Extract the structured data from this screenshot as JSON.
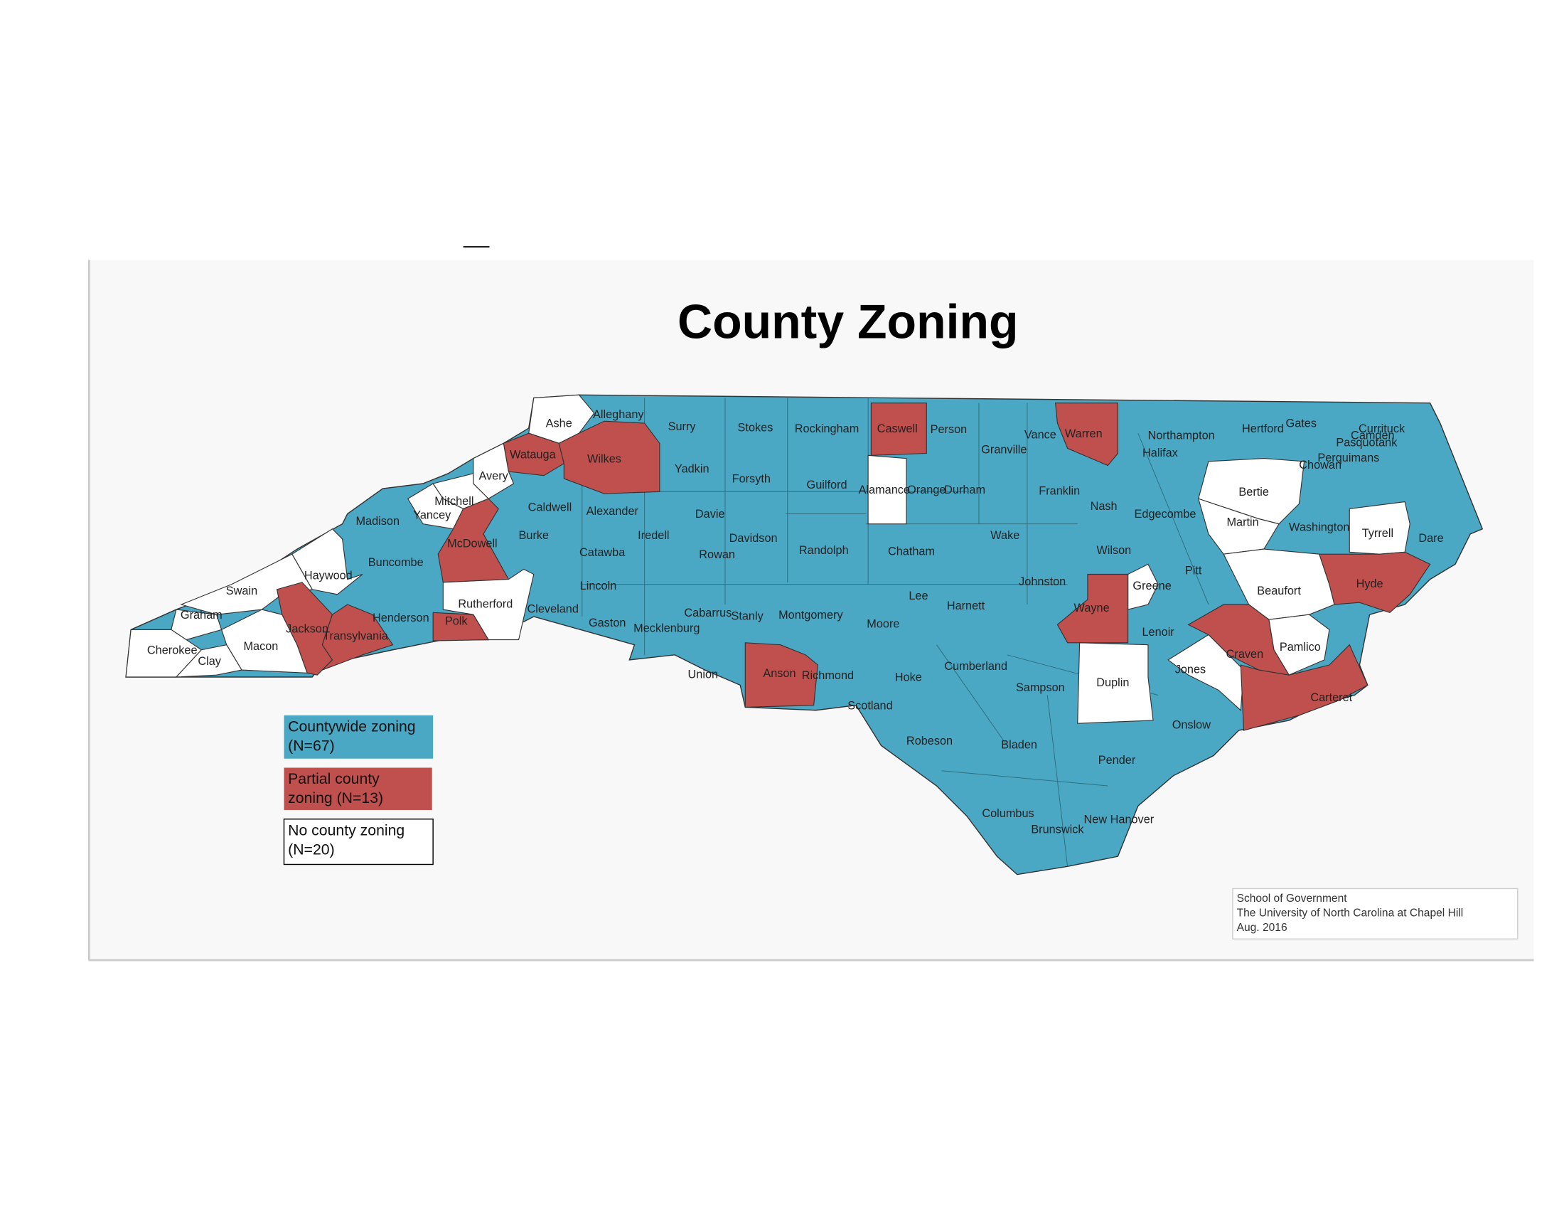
{
  "title": "County Zoning",
  "legend": [
    {
      "lines": [
        "Countywide zoning",
        "(N=67)"
      ],
      "color": "#4ba8c4"
    },
    {
      "lines": [
        "Partial county",
        "zoning (N=13)"
      ],
      "color": "#c0504d"
    },
    {
      "lines": [
        "No county zoning",
        "(N=20)"
      ],
      "color": "#ffffff"
    }
  ],
  "credit": [
    "School of Government",
    "The University of North Carolina at Chapel Hill",
    "Aug. 2016"
  ],
  "counties": [
    {
      "name": "Alleghany",
      "zoning": 0
    },
    {
      "name": "Ashe",
      "zoning": 2
    },
    {
      "name": "Surry",
      "zoning": 0
    },
    {
      "name": "Stokes",
      "zoning": 0
    },
    {
      "name": "Rockingham",
      "zoning": 0
    },
    {
      "name": "Caswell",
      "zoning": 1
    },
    {
      "name": "Person",
      "zoning": 0
    },
    {
      "name": "Granville",
      "zoning": 0
    },
    {
      "name": "Vance",
      "zoning": 0
    },
    {
      "name": "Warren",
      "zoning": 1
    },
    {
      "name": "Northampton",
      "zoning": 0
    },
    {
      "name": "Hertford",
      "zoning": 0
    },
    {
      "name": "Gates",
      "zoning": 0
    },
    {
      "name": "Currituck",
      "zoning": 0
    },
    {
      "name": "Camden",
      "zoning": 0
    },
    {
      "name": "Pasquotank",
      "zoning": 0
    },
    {
      "name": "Perquimans",
      "zoning": 0
    },
    {
      "name": "Chowan",
      "zoning": 0
    },
    {
      "name": "Halifax",
      "zoning": 0
    },
    {
      "name": "Watauga",
      "zoning": 1
    },
    {
      "name": "Wilkes",
      "zoning": 1
    },
    {
      "name": "Avery",
      "zoning": 2
    },
    {
      "name": "Yadkin",
      "zoning": 0
    },
    {
      "name": "Forsyth",
      "zoning": 0
    },
    {
      "name": "Guilford",
      "zoning": 0
    },
    {
      "name": "Alamance",
      "zoning": 2
    },
    {
      "name": "Orange",
      "zoning": 0
    },
    {
      "name": "Durham",
      "zoning": 0
    },
    {
      "name": "Franklin",
      "zoning": 0
    },
    {
      "name": "Bertie",
      "zoning": 2
    },
    {
      "name": "Mitchell",
      "zoning": 2
    },
    {
      "name": "Yancey",
      "zoning": 2
    },
    {
      "name": "Madison",
      "zoning": 0
    },
    {
      "name": "Caldwell",
      "zoning": 0
    },
    {
      "name": "Alexander",
      "zoning": 0
    },
    {
      "name": "Davie",
      "zoning": 0
    },
    {
      "name": "Iredell",
      "zoning": 0
    },
    {
      "name": "Burke",
      "zoning": 0
    },
    {
      "name": "Davidson",
      "zoning": 0
    },
    {
      "name": "Nash",
      "zoning": 0
    },
    {
      "name": "Edgecombe",
      "zoning": 0
    },
    {
      "name": "Martin",
      "zoning": 2
    },
    {
      "name": "Washington",
      "zoning": 0
    },
    {
      "name": "Tyrrell",
      "zoning": 2
    },
    {
      "name": "Dare",
      "zoning": 0
    },
    {
      "name": "Wake",
      "zoning": 0
    },
    {
      "name": "Wilson",
      "zoning": 0
    },
    {
      "name": "McDowell",
      "zoning": 1
    },
    {
      "name": "Catawba",
      "zoning": 0
    },
    {
      "name": "Rowan",
      "zoning": 0
    },
    {
      "name": "Randolph",
      "zoning": 0
    },
    {
      "name": "Chatham",
      "zoning": 0
    },
    {
      "name": "Buncombe",
      "zoning": 0
    },
    {
      "name": "Haywood",
      "zoning": 2
    },
    {
      "name": "Pitt",
      "zoning": 0
    },
    {
      "name": "Johnston",
      "zoning": 0
    },
    {
      "name": "Lincoln",
      "zoning": 0
    },
    {
      "name": "Greene",
      "zoning": 2
    },
    {
      "name": "Swain",
      "zoning": 2
    },
    {
      "name": "Beaufort",
      "zoning": 2
    },
    {
      "name": "Hyde",
      "zoning": 1
    },
    {
      "name": "Lee",
      "zoning": 0
    },
    {
      "name": "Rutherford",
      "zoning": 2
    },
    {
      "name": "Harnett",
      "zoning": 0
    },
    {
      "name": "Cleveland",
      "zoning": 0
    },
    {
      "name": "Wayne",
      "zoning": 1
    },
    {
      "name": "Graham",
      "zoning": 2
    },
    {
      "name": "Cabarrus",
      "zoning": 0
    },
    {
      "name": "Stanly",
      "zoning": 0
    },
    {
      "name": "Montgomery",
      "zoning": 0
    },
    {
      "name": "Henderson",
      "zoning": 0
    },
    {
      "name": "Polk",
      "zoning": 1
    },
    {
      "name": "Gaston",
      "zoning": 0
    },
    {
      "name": "Mecklenburg",
      "zoning": 0
    },
    {
      "name": "Moore",
      "zoning": 0
    },
    {
      "name": "Jackson",
      "zoning": 1
    },
    {
      "name": "Transylvania",
      "zoning": 1
    },
    {
      "name": "Lenoir",
      "zoning": 0
    },
    {
      "name": "Craven",
      "zoning": 1
    },
    {
      "name": "Pamlico",
      "zoning": 2
    },
    {
      "name": "Macon",
      "zoning": 2
    },
    {
      "name": "Cherokee",
      "zoning": 2
    },
    {
      "name": "Clay",
      "zoning": 2
    },
    {
      "name": "Cumberland",
      "zoning": 0
    },
    {
      "name": "Jones",
      "zoning": 2
    },
    {
      "name": "Union",
      "zoning": 0
    },
    {
      "name": "Anson",
      "zoning": 1
    },
    {
      "name": "Richmond",
      "zoning": 0
    },
    {
      "name": "Hoke",
      "zoning": 0
    },
    {
      "name": "Sampson",
      "zoning": 0
    },
    {
      "name": "Duplin",
      "zoning": 2
    },
    {
      "name": "Carteret",
      "zoning": 1
    },
    {
      "name": "Scotland",
      "zoning": 0
    },
    {
      "name": "Onslow",
      "zoning": 0
    },
    {
      "name": "Robeson",
      "zoning": 0
    },
    {
      "name": "Bladen",
      "zoning": 0
    },
    {
      "name": "Pender",
      "zoning": 0
    },
    {
      "name": "Columbus",
      "zoning": 0
    },
    {
      "name": "New Hanover",
      "zoning": 0
    },
    {
      "name": "Brunswick",
      "zoning": 0
    }
  ]
}
